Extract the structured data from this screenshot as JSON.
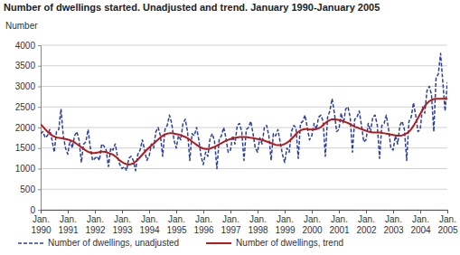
{
  "chart_data": {
    "type": "line",
    "title": "Number of dwellings started. Unadjusted and trend. January 1990-January 2005",
    "y_label": "Number",
    "categories": [
      "Jan. 1990",
      null,
      null,
      null,
      null,
      null,
      null,
      null,
      null,
      null,
      null,
      null,
      "Jan. 1991",
      null,
      null,
      null,
      null,
      null,
      null,
      null,
      null,
      null,
      null,
      null,
      "Jan. 1992",
      null,
      null,
      null,
      null,
      null,
      null,
      null,
      null,
      null,
      null,
      null,
      "Jan. 1993",
      null,
      null,
      null,
      null,
      null,
      null,
      null,
      null,
      null,
      null,
      null,
      "Jan. 1994",
      null,
      null,
      null,
      null,
      null,
      null,
      null,
      null,
      null,
      null,
      null,
      "Jan. 1995",
      null,
      null,
      null,
      null,
      null,
      null,
      null,
      null,
      null,
      null,
      null,
      "Jan. 1996",
      null,
      null,
      null,
      null,
      null,
      null,
      null,
      null,
      null,
      null,
      null,
      "Jan. 1997",
      null,
      null,
      null,
      null,
      null,
      null,
      null,
      null,
      null,
      null,
      null,
      "Jan. 1998",
      null,
      null,
      null,
      null,
      null,
      null,
      null,
      null,
      null,
      null,
      null,
      "Jan. 1999",
      null,
      null,
      null,
      null,
      null,
      null,
      null,
      null,
      null,
      null,
      null,
      "Jan. 2000",
      null,
      null,
      null,
      null,
      null,
      null,
      null,
      null,
      null,
      null,
      null,
      "Jan. 2001",
      null,
      null,
      null,
      null,
      null,
      null,
      null,
      null,
      null,
      null,
      null,
      "Jan. 2002",
      null,
      null,
      null,
      null,
      null,
      null,
      null,
      null,
      null,
      null,
      null,
      "Jan. 2003",
      null,
      null,
      null,
      null,
      null,
      null,
      null,
      null,
      null,
      null,
      null,
      "Jan. 2004",
      null,
      null,
      null,
      null,
      null,
      null,
      null,
      null,
      null,
      null,
      null,
      "Jan. 2005"
    ],
    "series": [
      {
        "name": "Number of dwellings, unadjusted",
        "color": "#2a3f9c",
        "line_style": "dashed",
        "values": [
          1850,
          1900,
          1750,
          1800,
          1950,
          1700,
          1400,
          1900,
          1950,
          2450,
          1800,
          1500,
          1350,
          1700,
          1500,
          1800,
          1900,
          1700,
          1150,
          1600,
          1650,
          1950,
          1500,
          1200,
          1250,
          1300,
          1200,
          1600,
          1550,
          1450,
          1050,
          1500,
          1450,
          1600,
          1300,
          1100,
          1000,
          1050,
          950,
          1250,
          1300,
          1200,
          950,
          1350,
          1450,
          1700,
          1450,
          1200,
          1300,
          1600,
          1500,
          1900,
          2000,
          1800,
          1300,
          1950,
          2050,
          2300,
          2100,
          1700,
          1500,
          1800,
          1700,
          2100,
          2200,
          1900,
          1200,
          1850,
          1800,
          2000,
          1700,
          1300,
          1100,
          1400,
          1300,
          1750,
          1850,
          1650,
          1000,
          1700,
          1800,
          2000,
          1750,
          1400,
          1450,
          1800,
          1600,
          2050,
          2100,
          1900,
          1200,
          1950,
          2000,
          2150,
          1850,
          1500,
          1400,
          1750,
          1600,
          2000,
          2050,
          1800,
          1200,
          1850,
          1800,
          1950,
          1650,
          1350,
          1150,
          1500,
          1400,
          1900,
          2050,
          2000,
          1250,
          2100,
          2150,
          2300,
          2000,
          1700,
          1800,
          2100,
          1950,
          2250,
          2300,
          2150,
          1300,
          2250,
          2400,
          2700,
          2350,
          1900,
          1950,
          2350,
          2100,
          2450,
          2500,
          2250,
          1400,
          2200,
          2250,
          2400,
          2050,
          1650,
          1700,
          2100,
          1900,
          2250,
          2300,
          2050,
          1250,
          2050,
          2100,
          2300,
          1950,
          1500,
          1450,
          1800,
          1600,
          2050,
          2150,
          1950,
          1200,
          2150,
          2250,
          2600,
          2300,
          1900,
          1950,
          2500,
          2350,
          2900,
          3000,
          2800,
          1900,
          3200,
          3300,
          3800,
          3100,
          2400,
          3100
        ]
      },
      {
        "name": "Number of dwellings, trend",
        "color": "#b31b1b",
        "line_style": "solid",
        "values": [
          2080,
          2020,
          1960,
          1900,
          1850,
          1810,
          1780,
          1760,
          1750,
          1740,
          1730,
          1720,
          1710,
          1690,
          1670,
          1640,
          1600,
          1560,
          1520,
          1480,
          1440,
          1410,
          1390,
          1380,
          1380,
          1390,
          1400,
          1410,
          1410,
          1400,
          1380,
          1360,
          1340,
          1300,
          1250,
          1200,
          1160,
          1130,
          1110,
          1100,
          1110,
          1130,
          1170,
          1220,
          1280,
          1340,
          1400,
          1460,
          1510,
          1560,
          1610,
          1660,
          1710,
          1760,
          1800,
          1830,
          1850,
          1860,
          1860,
          1850,
          1840,
          1830,
          1810,
          1790,
          1770,
          1740,
          1700,
          1660,
          1620,
          1580,
          1540,
          1510,
          1490,
          1480,
          1480,
          1490,
          1510,
          1530,
          1560,
          1590,
          1620,
          1650,
          1680,
          1700,
          1720,
          1740,
          1750,
          1760,
          1770,
          1770,
          1770,
          1770,
          1760,
          1750,
          1740,
          1730,
          1720,
          1710,
          1700,
          1680,
          1660,
          1640,
          1620,
          1600,
          1580,
          1570,
          1570,
          1580,
          1600,
          1630,
          1670,
          1720,
          1780,
          1840,
          1890,
          1930,
          1950,
          1960,
          1960,
          1950,
          1950,
          1950,
          1960,
          1980,
          2010,
          2060,
          2110,
          2150,
          2180,
          2200,
          2200,
          2190,
          2180,
          2170,
          2150,
          2130,
          2110,
          2080,
          2050,
          2020,
          2000,
          1980,
          1960,
          1940,
          1920,
          1900,
          1890,
          1880,
          1880,
          1880,
          1880,
          1870,
          1860,
          1850,
          1840,
          1830,
          1820,
          1810,
          1800,
          1800,
          1810,
          1830,
          1860,
          1900,
          1960,
          2040,
          2130,
          2230,
          2330,
          2430,
          2520,
          2590,
          2640,
          2670,
          2690,
          2700,
          2700,
          2700,
          2700,
          2700,
          2700
        ]
      }
    ],
    "ylim": [
      0,
      4000
    ],
    "yticks": [
      0,
      500,
      1000,
      1500,
      2000,
      2500,
      3000,
      3500,
      4000
    ],
    "grid": true,
    "legend": "bottom"
  }
}
